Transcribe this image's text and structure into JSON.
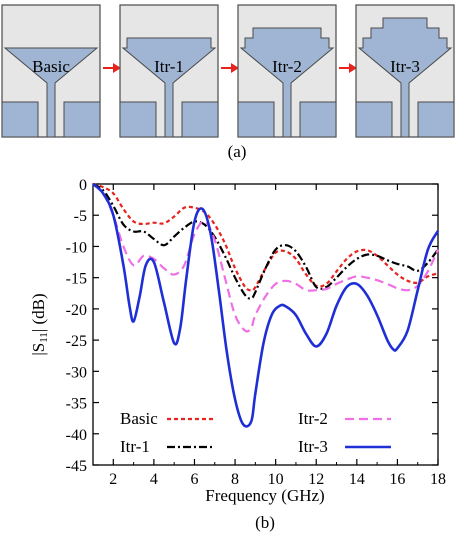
{
  "panel_a": {
    "caption": "(a)",
    "antennas": [
      {
        "label": "Basic",
        "steps": 0
      },
      {
        "label": "Itr-1",
        "steps": 1
      },
      {
        "label": "Itr-2",
        "steps": 2
      },
      {
        "label": "Itr-3",
        "steps": 3
      }
    ],
    "colors": {
      "board": "#e6e6e6",
      "metal": "#9fb5d3",
      "edge": "#4a4a4a",
      "arrow": "#e8221c"
    }
  },
  "panel_b": {
    "caption": "(b)"
  },
  "chart_data": {
    "type": "line",
    "xlabel": "Frequency (GHz)",
    "ylabel": "|S11| (dB)",
    "xlim": [
      1,
      18
    ],
    "ylim": [
      -45,
      0
    ],
    "xticks": [
      2,
      4,
      6,
      8,
      10,
      12,
      14,
      16,
      18
    ],
    "yticks": [
      0,
      -5,
      -10,
      -15,
      -20,
      -25,
      -30,
      -35,
      -40,
      -45
    ],
    "grid": false,
    "legend": "bottom-left",
    "series": [
      {
        "name": "Basic",
        "color": "#e8221c",
        "dash": "short-dash",
        "x": [
          1.0,
          1.5,
          2.0,
          2.5,
          3.0,
          3.5,
          4.0,
          4.5,
          5.0,
          5.5,
          6.0,
          6.5,
          7.0,
          7.5,
          8.0,
          8.5,
          8.8,
          9.0,
          9.5,
          10.0,
          10.5,
          11.0,
          11.5,
          12.0,
          12.5,
          13.0,
          13.5,
          14.0,
          14.5,
          15.0,
          15.5,
          16.0,
          16.5,
          17.0,
          17.5,
          18.0
        ],
        "y": [
          0,
          -0.5,
          -1.5,
          -4.0,
          -6.0,
          -6.4,
          -6.2,
          -6.3,
          -5.2,
          -3.8,
          -3.8,
          -4.5,
          -6.5,
          -9.5,
          -13.5,
          -16.5,
          -17.0,
          -16.5,
          -13.5,
          -11.0,
          -10.8,
          -12.0,
          -14.5,
          -16.3,
          -16.0,
          -14.0,
          -12.0,
          -10.8,
          -10.6,
          -11.5,
          -13.0,
          -14.5,
          -15.5,
          -15.8,
          -14.8,
          -14.3
        ]
      },
      {
        "name": "Itr-1",
        "color": "#000000",
        "dash": "dash-dot",
        "x": [
          1.0,
          1.5,
          2.0,
          2.5,
          3.0,
          3.5,
          4.0,
          4.5,
          5.0,
          5.5,
          6.0,
          6.5,
          7.0,
          7.5,
          8.0,
          8.5,
          8.8,
          9.0,
          9.5,
          10.0,
          10.5,
          11.0,
          11.5,
          12.0,
          12.5,
          13.0,
          13.5,
          14.0,
          14.5,
          15.0,
          15.5,
          16.0,
          16.5,
          17.0,
          17.5,
          18.0
        ],
        "y": [
          0,
          -1.0,
          -3.5,
          -6.5,
          -7.6,
          -7.6,
          -8.8,
          -9.8,
          -8.4,
          -7.0,
          -6.0,
          -6.5,
          -8.5,
          -11.5,
          -15.0,
          -17.8,
          -18.3,
          -17.3,
          -13.5,
          -10.5,
          -9.8,
          -10.8,
          -13.3,
          -16.5,
          -16.5,
          -15.0,
          -13.3,
          -12.0,
          -11.3,
          -11.5,
          -12.2,
          -12.8,
          -13.2,
          -13.9,
          -12.6,
          -10.5
        ]
      },
      {
        "name": "Itr-2",
        "color": "#ee6fe6",
        "dash": "long-dash",
        "x": [
          1.0,
          1.5,
          2.0,
          2.5,
          3.0,
          3.5,
          4.0,
          4.5,
          5.0,
          5.5,
          6.0,
          6.5,
          7.0,
          7.5,
          8.0,
          8.5,
          8.8,
          9.0,
          9.5,
          10.0,
          10.5,
          11.0,
          11.5,
          12.0,
          12.5,
          13.0,
          13.5,
          14.0,
          14.5,
          15.0,
          15.5,
          16.0,
          16.5,
          17.0,
          17.5,
          18.0
        ],
        "y": [
          0,
          -1.5,
          -5.0,
          -10.0,
          -13.0,
          -11.5,
          -12.0,
          -13.5,
          -14.5,
          -13.0,
          -8.0,
          -6.0,
          -9.0,
          -15.0,
          -21.0,
          -23.5,
          -23.0,
          -21.0,
          -18.0,
          -16.0,
          -15.5,
          -16.0,
          -17.0,
          -17.0,
          -16.8,
          -16.0,
          -15.3,
          -14.8,
          -15.0,
          -15.4,
          -16.0,
          -16.7,
          -17.0,
          -16.3,
          -14.0,
          -10.5
        ]
      },
      {
        "name": "Itr-3",
        "color": "#1f2fd6",
        "dash": "solid",
        "x": [
          1.0,
          1.5,
          2.0,
          2.5,
          2.8,
          3.0,
          3.3,
          3.6,
          4.0,
          4.5,
          5.0,
          5.3,
          5.6,
          6.0,
          6.4,
          6.8,
          7.2,
          7.6,
          8.0,
          8.4,
          8.8,
          9.0,
          9.4,
          9.8,
          10.2,
          10.5,
          11.0,
          11.5,
          12.0,
          12.5,
          13.0,
          13.5,
          14.0,
          14.5,
          15.0,
          15.5,
          15.8,
          16.0,
          16.5,
          17.0,
          17.5,
          18.0
        ],
        "y": [
          0,
          -1.5,
          -5.0,
          -13.0,
          -19.5,
          -22.0,
          -18.0,
          -13.0,
          -12.5,
          -19.0,
          -25.5,
          -23.0,
          -15.0,
          -6.0,
          -4.0,
          -8.0,
          -17.0,
          -27.0,
          -34.5,
          -38.5,
          -38.0,
          -33.5,
          -25.5,
          -21.0,
          -19.5,
          -19.6,
          -21.0,
          -24.0,
          -26.0,
          -24.0,
          -19.5,
          -16.5,
          -16.0,
          -17.8,
          -21.0,
          -25.0,
          -26.5,
          -26.3,
          -23.5,
          -17.0,
          -10.5,
          -7.5
        ]
      }
    ]
  }
}
